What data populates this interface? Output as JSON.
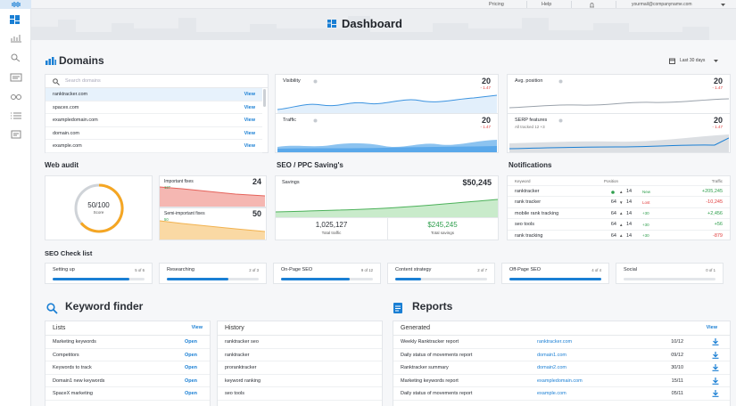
{
  "topbar": {
    "links": [
      "Pricing",
      "Help"
    ],
    "email": "yourmail@companyname.com"
  },
  "header": {
    "title": "Dashboard"
  },
  "domains": {
    "title": "Domains",
    "period": "Last 30 days",
    "search_placeholder": "Search domains",
    "action": "View",
    "list": [
      "ranktracker.com",
      "spacex.com",
      "exampledomain.com",
      "domain.com",
      "example.com"
    ]
  },
  "metrics": [
    {
      "name": "Visibility",
      "value": "20",
      "change": "- 1.47"
    },
    {
      "name": "Avg. position",
      "value": "20",
      "change": "- 1.47"
    },
    {
      "name": "Traffic",
      "value": "20",
      "change": "- 1.47"
    },
    {
      "name": "SERP features",
      "value": "20",
      "change": "- 1.47",
      "note": "All tracked 12 +3"
    }
  ],
  "web_audit": {
    "title": "Web audit",
    "score": "50/100",
    "score_label": "Score",
    "fixes": [
      {
        "name": "Important fixes",
        "value": "24",
        "sub": "127"
      },
      {
        "name": "Semi-important fixes",
        "value": "50",
        "sub": "50"
      }
    ]
  },
  "seo_ppc": {
    "title": "SEO / PPC Saving's",
    "savings_label": "Savings",
    "savings": "$50,245",
    "traffic": "1,025,127",
    "traffic_label": "Total traffic",
    "total_savings": "$245,245",
    "total_savings_label": "Total savings"
  },
  "notifications": {
    "title": "Notifications",
    "columns": [
      "Keyword",
      "Position",
      "Traffic"
    ],
    "rows": [
      {
        "keyword": "ranktracker",
        "arrow": "▲",
        "current": "14",
        "status": "New",
        "traffic": "+205,245"
      },
      {
        "keyword": "rank tracker",
        "prev": "64",
        "arrow": "▼",
        "current": "14",
        "status": "Lost",
        "traffic": "-10,245"
      },
      {
        "keyword": "mobile rank tracking",
        "prev": "64",
        "arrow": "▲",
        "current": "14",
        "status": "+30",
        "traffic": "+2,456"
      },
      {
        "keyword": "seo tools",
        "prev": "64",
        "arrow": "▲",
        "current": "14",
        "status": "+30",
        "traffic": "+56"
      },
      {
        "keyword": "rank tracking",
        "prev": "64",
        "arrow": "▲",
        "current": "14",
        "status": "+30",
        "traffic": "-879"
      }
    ]
  },
  "checklist": {
    "title": "SEO Check list",
    "items": [
      {
        "name": "Setting up",
        "done": 5,
        "total": 6,
        "label": "5 of 6"
      },
      {
        "name": "Researching",
        "done": 2,
        "total": 3,
        "label": "2 of 3"
      },
      {
        "name": "On-Page SEO",
        "done": 9,
        "total": 12,
        "label": "9 of 12"
      },
      {
        "name": "Content strategy",
        "done": 2,
        "total": 7,
        "label": "2 of 7"
      },
      {
        "name": "Off-Page SEO",
        "done": 4,
        "total": 4,
        "label": "4 of 4"
      },
      {
        "name": "Social",
        "done": 0,
        "total": 1,
        "label": "0 of 1"
      }
    ]
  },
  "keyword_finder": {
    "title": "Keyword finder",
    "lists": {
      "title": "Lists",
      "action": "View",
      "item_action": "Open",
      "items": [
        "Marketing keywords",
        "Competitors",
        "Keywords to track",
        "Domain1 new keywords",
        "SpaceX marketing"
      ]
    },
    "history": {
      "title": "History",
      "items": [
        "ranktracker seo",
        "ranktracker",
        "proranktracker",
        "keyword ranking",
        "seo tools"
      ]
    }
  },
  "reports": {
    "title": "Reports",
    "table_title": "Generated",
    "action": "View",
    "rows": [
      [
        "Weekly Ranktracker report",
        "ranktracker.com",
        "10/12"
      ],
      [
        "Daily status of movements report",
        "domain1.com",
        "09/12"
      ],
      [
        "Ranktracker summary",
        "domain2.com",
        "30/10"
      ],
      [
        "Marketing keywords report",
        "exampledomain.com",
        "15/11"
      ],
      [
        "Daily status of movements report",
        "example.com",
        "05/11"
      ]
    ]
  }
}
